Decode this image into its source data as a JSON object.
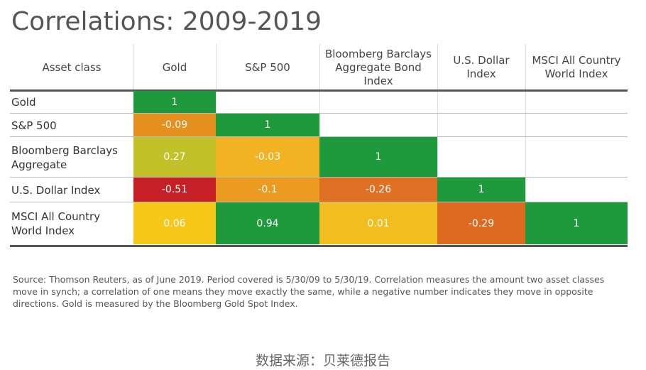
{
  "chart_data": {
    "type": "heatmap",
    "title": "Correlations: 2009-2019",
    "corner_label": "Asset class",
    "columns": [
      "Gold",
      "S&P 500",
      "Bloomberg Barclays Aggregate Bond Index",
      "U.S. Dollar Index",
      "MSCI All Country World Index"
    ],
    "rows": [
      "Gold",
      "S&P 500",
      "Bloomberg Barclays Aggregate",
      "U.S. Dollar Index",
      "MSCI All Country World Index"
    ],
    "values": [
      [
        1,
        null,
        null,
        null,
        null
      ],
      [
        -0.09,
        1,
        null,
        null,
        null
      ],
      [
        0.27,
        -0.03,
        1,
        null,
        null
      ],
      [
        -0.51,
        -0.1,
        -0.26,
        1,
        null
      ],
      [
        0.06,
        0.94,
        0.01,
        -0.29,
        1
      ]
    ],
    "value_labels": [
      [
        "1",
        "",
        "",
        "",
        ""
      ],
      [
        "-0.09",
        "1",
        "",
        "",
        ""
      ],
      [
        "0.27",
        "-0.03",
        "1",
        "",
        ""
      ],
      [
        "-0.51",
        "-0.1",
        "-0.26",
        "1",
        ""
      ],
      [
        "0.06",
        "0.94",
        "0.01",
        "-0.29",
        "1"
      ]
    ],
    "cell_colors": [
      [
        "#1e9a3c",
        null,
        null,
        null,
        null
      ],
      [
        "#e58f1f",
        "#1e9a3c",
        null,
        null,
        null
      ],
      [
        "#c3c12a",
        "#f2b221",
        "#1e9a3c",
        null,
        null
      ],
      [
        "#c42026",
        "#ea9b20",
        "#df6f22",
        "#1e9a3c",
        null
      ],
      [
        "#f6c619",
        "#1e9a3c",
        "#f3bd20",
        "#dd6a20",
        "#1e9a3c"
      ]
    ]
  },
  "source_note": "Source: Thomson Reuters, as of June 2019. Period covered is 5/30/09 to 5/30/19. Correlation measures the amount two asset classes move in synch; a correlation of one means they move exactly the same, while a negative number indicates they move in opposite directions. Gold is measured by the Bloomberg Gold Spot Index.",
  "credit": "数据来源：贝莱德报告"
}
